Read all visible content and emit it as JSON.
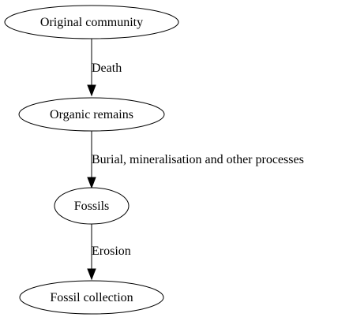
{
  "diagram": {
    "nodes": {
      "original_community": "Original community",
      "organic_remains": "Organic remains",
      "fossils": "Fossils",
      "fossil_collection": "Fossil collection"
    },
    "edges": {
      "death": "Death",
      "burial": "Burial, mineralisation and other processes",
      "erosion": "Erosion"
    }
  }
}
